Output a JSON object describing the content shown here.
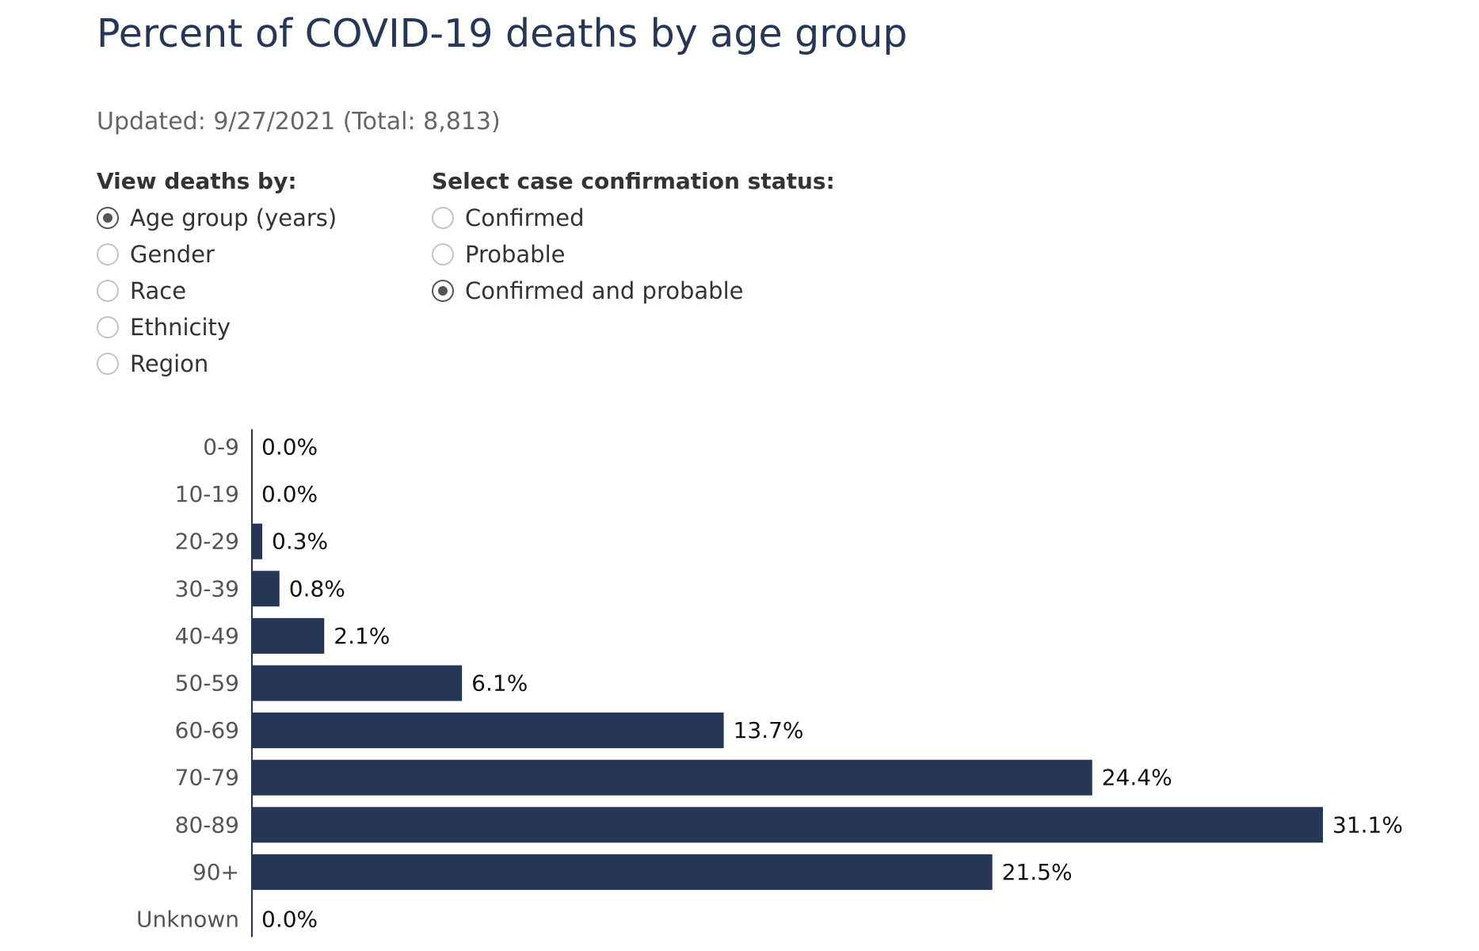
{
  "page": {
    "title": "Percent of COVID-19 deaths by age group",
    "updated": "Updated: 9/27/2021 (Total: 8,813)"
  },
  "controls": {
    "view_by": {
      "label": "View deaths by:",
      "options": [
        {
          "label": "Age group (years)",
          "checked": true
        },
        {
          "label": "Gender",
          "checked": false
        },
        {
          "label": "Race",
          "checked": false
        },
        {
          "label": "Ethnicity",
          "checked": false
        },
        {
          "label": "Region",
          "checked": false
        }
      ]
    },
    "confirmation_status": {
      "label": "Select case confirmation status:",
      "options": [
        {
          "label": "Confirmed",
          "checked": false
        },
        {
          "label": "Probable",
          "checked": false
        },
        {
          "label": "Confirmed and probable",
          "checked": true
        }
      ]
    }
  },
  "colors": {
    "bar": "#263656",
    "title": "#263656",
    "tick_label": "#555555",
    "value_label": "#111111",
    "axis": "#263656"
  },
  "chart_data": {
    "type": "bar",
    "orientation": "horizontal",
    "categories": [
      "0-9",
      "10-19",
      "20-29",
      "30-39",
      "40-49",
      "50-59",
      "60-69",
      "70-79",
      "80-89",
      "90+",
      "Unknown"
    ],
    "values": [
      0.0,
      0.0,
      0.3,
      0.8,
      2.1,
      6.1,
      13.7,
      24.4,
      31.1,
      21.5,
      0.0
    ],
    "value_labels": [
      "0.0%",
      "0.0%",
      "0.3%",
      "0.8%",
      "2.1%",
      "6.1%",
      "13.7%",
      "24.4%",
      "31.1%",
      "21.5%",
      "0.0%"
    ],
    "unit": "%",
    "xlim": [
      0,
      31.1
    ],
    "grid": false,
    "legend": "none"
  }
}
